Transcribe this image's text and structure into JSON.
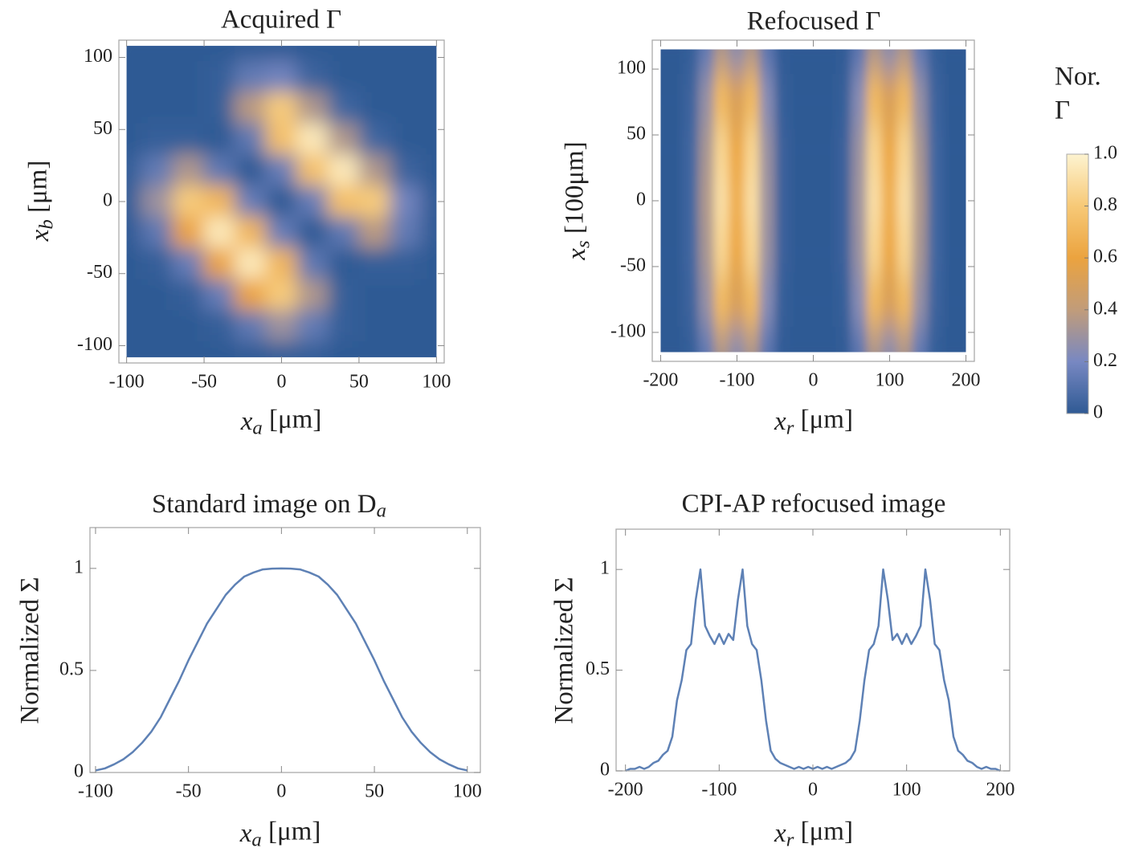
{
  "chart_data": [
    {
      "type": "heatmap",
      "title": "Acquired Γ",
      "xlabel": [
        "x",
        "a",
        " [μm]"
      ],
      "ylabel": [
        "x",
        "b",
        " [μm]"
      ],
      "xlim": [
        -105,
        105
      ],
      "ylim": [
        -112,
        112
      ],
      "xticks": [
        -100,
        -50,
        0,
        50,
        100
      ],
      "yticks": [
        -100,
        -50,
        0,
        50,
        100
      ],
      "x": [
        -100,
        -80,
        -60,
        -40,
        -20,
        0,
        20,
        40,
        60,
        80,
        100
      ],
      "y": [
        108,
        86.4,
        64.8,
        43.2,
        21.6,
        0,
        -21.6,
        -43.2,
        -64.8,
        -86.4,
        -108
      ],
      "z": [
        [
          0,
          0,
          0,
          0,
          0.01,
          0.01,
          0,
          0,
          0,
          0,
          0
        ],
        [
          0,
          0,
          0,
          0.02,
          0.14,
          0.18,
          0.04,
          0,
          0,
          0,
          0
        ],
        [
          0,
          0,
          0,
          0.02,
          0.38,
          0.81,
          0.35,
          0.05,
          0,
          0,
          0
        ],
        [
          0,
          0.02,
          0.02,
          0,
          0.13,
          0.75,
          0.95,
          0.35,
          0.05,
          0,
          0
        ],
        [
          0.02,
          0.14,
          0.35,
          0.13,
          0,
          0.15,
          0.75,
          0.95,
          0.35,
          0.04,
          0
        ],
        [
          0.02,
          0.3,
          0.81,
          0.7,
          0.15,
          0,
          0.15,
          0.75,
          0.81,
          0.18,
          0.01
        ],
        [
          0.01,
          0.13,
          0.6,
          0.95,
          0.7,
          0.15,
          0,
          0.13,
          0.38,
          0.14,
          0.01
        ],
        [
          0,
          0.02,
          0.15,
          0.6,
          0.95,
          0.7,
          0.13,
          0,
          0.02,
          0.02,
          0
        ],
        [
          0,
          0,
          0.02,
          0.15,
          0.6,
          0.81,
          0.35,
          0.02,
          0,
          0,
          0
        ],
        [
          0,
          0,
          0,
          0.02,
          0.13,
          0.3,
          0.14,
          0.02,
          0,
          0,
          0
        ],
        [
          0,
          0,
          0,
          0,
          0.01,
          0.02,
          0.02,
          0,
          0,
          0,
          0
        ]
      ]
    },
    {
      "type": "heatmap",
      "title": "Refocused Γ",
      "xlabel": [
        "x",
        "r",
        " [μm]"
      ],
      "ylabel": [
        "x",
        "s",
        " [100μm]"
      ],
      "xlim": [
        -211,
        211
      ],
      "ylim": [
        -122,
        122
      ],
      "xticks": [
        -200,
        -100,
        0,
        100,
        200
      ],
      "yticks": [
        -100,
        -50,
        0,
        50,
        100
      ],
      "x": [
        -200,
        -180,
        -160,
        -140,
        -120,
        -100,
        -80,
        -60,
        -40,
        -20,
        0,
        20,
        40,
        60,
        80,
        100,
        120,
        140,
        160,
        180,
        200
      ],
      "y": [
        115,
        77,
        38,
        0,
        -38,
        -77,
        -115
      ],
      "z": [
        [
          0,
          0,
          0.02,
          0.14,
          0.36,
          0.26,
          0.36,
          0.12,
          0.01,
          0,
          0,
          0,
          0.01,
          0.12,
          0.36,
          0.26,
          0.36,
          0.14,
          0.02,
          0,
          0
        ],
        [
          0,
          0,
          0.04,
          0.28,
          0.72,
          0.52,
          0.72,
          0.24,
          0.02,
          0,
          0,
          0,
          0.02,
          0.24,
          0.72,
          0.52,
          0.72,
          0.28,
          0.04,
          0,
          0
        ],
        [
          0,
          0,
          0.05,
          0.33,
          0.86,
          0.62,
          0.86,
          0.29,
          0.03,
          0,
          0,
          0,
          0.03,
          0.29,
          0.86,
          0.62,
          0.86,
          0.33,
          0.05,
          0,
          0
        ],
        [
          0,
          0,
          0.05,
          0.35,
          0.9,
          0.65,
          0.9,
          0.3,
          0.03,
          0,
          0,
          0,
          0.03,
          0.3,
          0.9,
          0.65,
          0.9,
          0.35,
          0.05,
          0,
          0
        ],
        [
          0,
          0,
          0.05,
          0.33,
          0.86,
          0.62,
          0.86,
          0.29,
          0.03,
          0,
          0,
          0,
          0.03,
          0.29,
          0.86,
          0.62,
          0.86,
          0.33,
          0.05,
          0,
          0
        ],
        [
          0,
          0,
          0.04,
          0.28,
          0.72,
          0.52,
          0.72,
          0.24,
          0.02,
          0,
          0,
          0,
          0.02,
          0.24,
          0.72,
          0.52,
          0.72,
          0.28,
          0.04,
          0,
          0
        ],
        [
          0,
          0,
          0.02,
          0.14,
          0.36,
          0.26,
          0.36,
          0.12,
          0.01,
          0,
          0,
          0,
          0.01,
          0.12,
          0.36,
          0.26,
          0.36,
          0.14,
          0.02,
          0,
          0
        ]
      ]
    },
    {
      "type": "line",
      "title": [
        "Standard image on D",
        "a"
      ],
      "xlabel": [
        "x",
        "a",
        " [μm]"
      ],
      "ylabel": "Normalized Σ",
      "xlim": [
        -103,
        107
      ],
      "ylim": [
        0,
        1.2
      ],
      "xticks": [
        -100,
        -50,
        0,
        50,
        100
      ],
      "yticks": [
        0,
        0.5,
        1
      ],
      "color": "#5e81b5",
      "x": [
        -100,
        -95,
        -90,
        -85,
        -80,
        -75,
        -70,
        -65,
        -60,
        -55,
        -50,
        -45,
        -40,
        -35,
        -30,
        -25,
        -20,
        -15,
        -10,
        -5,
        0,
        5,
        10,
        15,
        20,
        25,
        30,
        35,
        40,
        45,
        50,
        55,
        60,
        65,
        70,
        75,
        80,
        85,
        90,
        95,
        100
      ],
      "values": [
        0.01,
        0.02,
        0.04,
        0.065,
        0.1,
        0.145,
        0.2,
        0.27,
        0.36,
        0.45,
        0.55,
        0.64,
        0.73,
        0.8,
        0.87,
        0.92,
        0.96,
        0.98,
        0.995,
        0.999,
        1,
        0.999,
        0.995,
        0.98,
        0.96,
        0.92,
        0.87,
        0.8,
        0.73,
        0.64,
        0.55,
        0.45,
        0.36,
        0.27,
        0.2,
        0.145,
        0.1,
        0.065,
        0.04,
        0.02,
        0.01
      ]
    },
    {
      "type": "line",
      "title": "CPI-AP refocused image",
      "xlabel": [
        "x",
        "r",
        " [μm]"
      ],
      "ylabel": "Normalized Σ",
      "xlim": [
        -210,
        210
      ],
      "ylim": [
        0,
        1.2
      ],
      "xticks": [
        -200,
        -100,
        0,
        100,
        200
      ],
      "yticks": [
        0,
        0.5,
        1
      ],
      "color": "#5e81b5",
      "x": [
        -200,
        -195,
        -190,
        -185,
        -180,
        -175,
        -170,
        -165,
        -160,
        -155,
        -150,
        -145,
        -140,
        -135,
        -130,
        -125,
        -120,
        -115,
        -110,
        -105,
        -100,
        -95,
        -90,
        -85,
        -80,
        -75,
        -70,
        -65,
        -60,
        -55,
        -50,
        -45,
        -40,
        -35,
        -30,
        -25,
        -20,
        -15,
        -10,
        -5,
        0,
        5,
        10,
        15,
        20,
        25,
        30,
        35,
        40,
        45,
        50,
        55,
        60,
        65,
        70,
        75,
        80,
        85,
        90,
        95,
        100,
        105,
        110,
        115,
        120,
        125,
        130,
        135,
        140,
        145,
        150,
        155,
        160,
        165,
        170,
        175,
        180,
        185,
        190,
        195,
        200
      ],
      "values": [
        0,
        0.01,
        0.01,
        0.02,
        0.01,
        0.02,
        0.04,
        0.05,
        0.08,
        0.1,
        0.17,
        0.35,
        0.45,
        0.6,
        0.63,
        0.85,
        1.0,
        0.72,
        0.67,
        0.63,
        0.68,
        0.63,
        0.68,
        0.65,
        0.85,
        1.0,
        0.72,
        0.63,
        0.6,
        0.45,
        0.25,
        0.1,
        0.06,
        0.04,
        0.03,
        0.02,
        0.01,
        0.02,
        0.01,
        0.02,
        0.01,
        0.02,
        0.01,
        0.02,
        0.01,
        0.02,
        0.03,
        0.04,
        0.06,
        0.1,
        0.25,
        0.45,
        0.6,
        0.63,
        0.72,
        1.0,
        0.85,
        0.65,
        0.68,
        0.63,
        0.68,
        0.63,
        0.67,
        0.72,
        1.0,
        0.85,
        0.63,
        0.6,
        0.45,
        0.35,
        0.17,
        0.1,
        0.08,
        0.05,
        0.04,
        0.02,
        0.01,
        0.02,
        0.01,
        0.01,
        0
      ]
    },
    {
      "type": "colorbar",
      "title": [
        "Nor.",
        "Γ"
      ],
      "zlim": [
        0,
        1
      ],
      "ticks": [
        0,
        0.2,
        0.4,
        0.6,
        0.8,
        {
          "value": 1,
          "label": "1.0"
        }
      ],
      "colors": [
        "#2f5a94",
        "#7888c2",
        "#c19c7a",
        "#eba33f",
        "#f7c977",
        "#fdf3d0"
      ]
    }
  ]
}
